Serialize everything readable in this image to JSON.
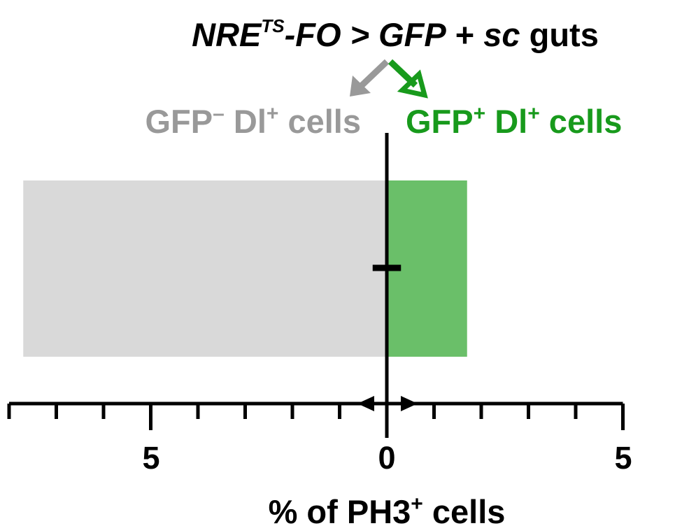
{
  "chart_data": {
    "type": "bar",
    "orientation": "horizontal-diverging",
    "title_parts": {
      "nre": "NRE",
      "ts": "TS",
      "fo": "-FO > GFP",
      "plus": " + ",
      "sc": "sc",
      "guts": " guts"
    },
    "left_label": {
      "main": "GFP",
      "sup1": "–",
      "mid": " Dl",
      "sup2": "+",
      "end": " cells"
    },
    "right_label": {
      "main": "GFP",
      "sup1": "+",
      "mid": " Dl",
      "sup2": "+",
      "end": " cells"
    },
    "xlabel": {
      "main": "% of PH3",
      "sup": "+",
      "end": " cells"
    },
    "tick_labels": {
      "left": "5",
      "center": "0",
      "right": "5"
    },
    "xlim_left": 8,
    "xlim_right": 5,
    "series": [
      {
        "side": "left",
        "value": 7.7,
        "color": "#d9d9d9"
      },
      {
        "side": "right",
        "value": 1.7,
        "color": "#6abf69"
      }
    ],
    "error_bar_value": 0.3,
    "colors": {
      "gray_text": "#999999",
      "green_text": "#189a1c",
      "axis": "#000000"
    }
  }
}
